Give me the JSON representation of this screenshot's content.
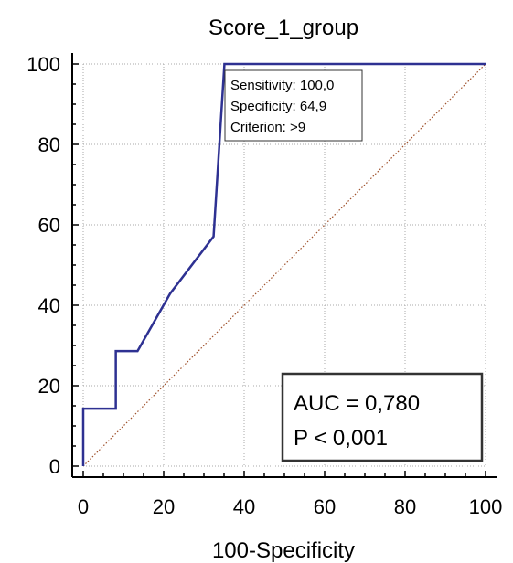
{
  "chart_data": {
    "type": "line",
    "title": "Score_1_group",
    "xlabel": "100-Specificity",
    "ylabel": "",
    "xlim": [
      0,
      100
    ],
    "ylim": [
      0,
      100
    ],
    "x_ticks": [
      0,
      20,
      40,
      60,
      80,
      100
    ],
    "y_ticks": [
      0,
      20,
      40,
      60,
      80,
      100
    ],
    "grid": true,
    "series": [
      {
        "color": "#2E3192",
        "points": [
          [
            0,
            0
          ],
          [
            0,
            14.3
          ],
          [
            8.1,
            14.3
          ],
          [
            8.1,
            28.6
          ],
          [
            13.5,
            28.6
          ],
          [
            21.6,
            42.9
          ],
          [
            32.4,
            57.1
          ],
          [
            35.1,
            100
          ],
          [
            100,
            100
          ]
        ]
      },
      {
        "color": "#A0522D",
        "style": "dotted",
        "points": [
          [
            0,
            0
          ],
          [
            100,
            100
          ]
        ]
      }
    ],
    "annotations": {
      "criterion_box": [
        "Sensitivity: 100,0",
        "Specificity: 64,9",
        "Criterion: >9"
      ],
      "stats_box": [
        "AUC = 0,780",
        "P < 0,001"
      ]
    }
  }
}
